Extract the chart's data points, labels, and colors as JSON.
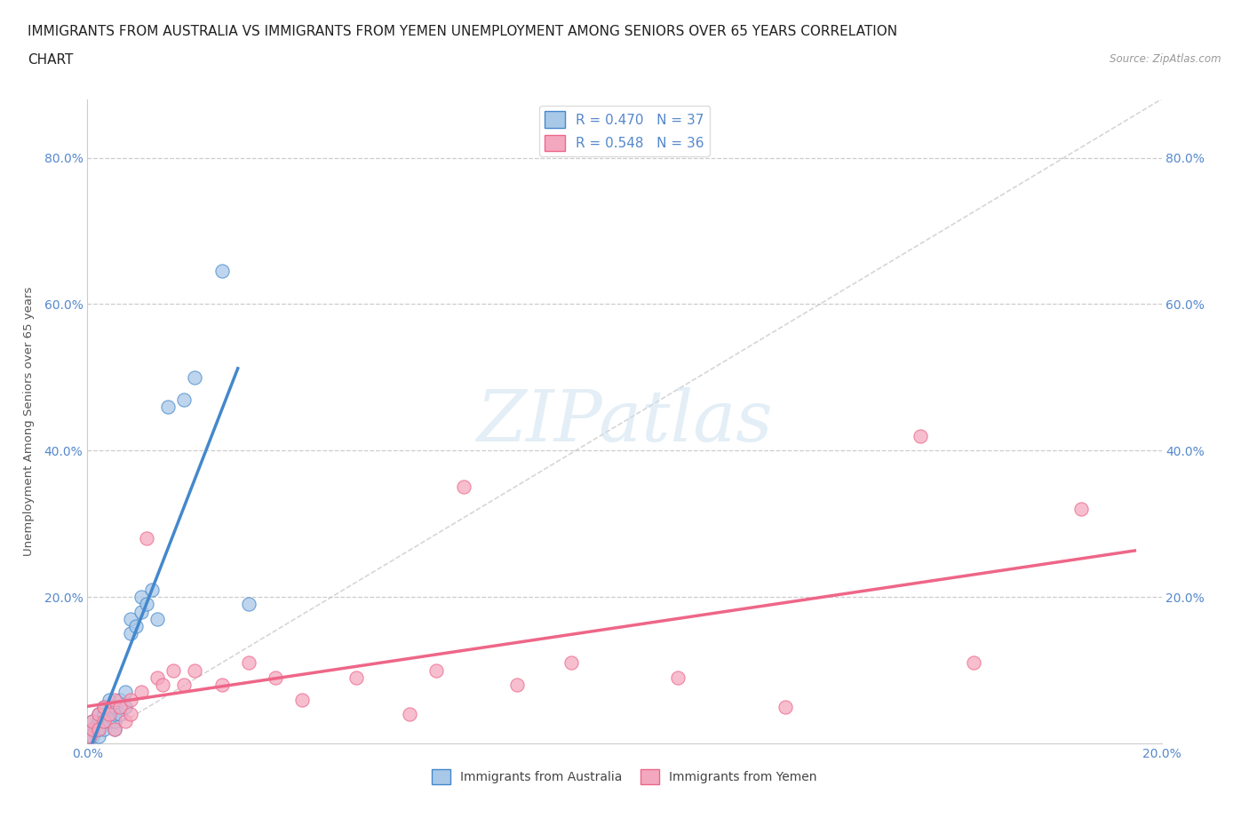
{
  "title_line1": "IMMIGRANTS FROM AUSTRALIA VS IMMIGRANTS FROM YEMEN UNEMPLOYMENT AMONG SENIORS OVER 65 YEARS CORRELATION",
  "title_line2": "CHART",
  "source": "Source: ZipAtlas.com",
  "ylabel": "Unemployment Among Seniors over 65 years",
  "xlim": [
    0.0,
    0.2
  ],
  "ylim": [
    0.0,
    0.88
  ],
  "yticks": [
    0.0,
    0.2,
    0.4,
    0.6,
    0.8
  ],
  "ytick_labels_left": [
    "",
    "20.0%",
    "40.0%",
    "60.0%",
    "80.0%"
  ],
  "ytick_labels_right": [
    "",
    "20.0%",
    "40.0%",
    "60.0%",
    "80.0%"
  ],
  "xticks": [
    0.0,
    0.05,
    0.1,
    0.15,
    0.2
  ],
  "xtick_labels": [
    "0.0%",
    "",
    "",
    "",
    "20.0%"
  ],
  "R_australia": 0.47,
  "N_australia": 37,
  "R_yemen": 0.548,
  "N_yemen": 36,
  "color_australia": "#a8c8e8",
  "color_yemen": "#f4a8c0",
  "line_color_australia": "#4488cc",
  "line_color_yemen": "#ee6688",
  "diagonal_color": "#c8c8c8",
  "watermark_color": "#cce0f0",
  "tick_color": "#5588cc",
  "title_fontsize": 11,
  "axis_label_fontsize": 9.5,
  "tick_fontsize": 10,
  "legend_fontsize": 11,
  "aus_x": [
    0.0005,
    0.001,
    0.001,
    0.001,
    0.0015,
    0.002,
    0.002,
    0.002,
    0.002,
    0.003,
    0.003,
    0.003,
    0.003,
    0.004,
    0.004,
    0.004,
    0.005,
    0.005,
    0.005,
    0.005,
    0.006,
    0.006,
    0.007,
    0.007,
    0.008,
    0.008,
    0.009,
    0.01,
    0.01,
    0.011,
    0.012,
    0.013,
    0.015,
    0.018,
    0.02,
    0.025,
    0.03
  ],
  "aus_y": [
    0.01,
    0.01,
    0.02,
    0.03,
    0.02,
    0.01,
    0.02,
    0.03,
    0.04,
    0.02,
    0.03,
    0.04,
    0.05,
    0.03,
    0.04,
    0.06,
    0.02,
    0.03,
    0.04,
    0.05,
    0.04,
    0.06,
    0.05,
    0.07,
    0.15,
    0.17,
    0.16,
    0.18,
    0.2,
    0.19,
    0.21,
    0.17,
    0.46,
    0.47,
    0.5,
    0.645,
    0.19
  ],
  "yem_x": [
    0.0005,
    0.001,
    0.001,
    0.002,
    0.002,
    0.003,
    0.003,
    0.004,
    0.005,
    0.005,
    0.006,
    0.007,
    0.008,
    0.008,
    0.01,
    0.011,
    0.013,
    0.014,
    0.016,
    0.018,
    0.02,
    0.025,
    0.03,
    0.035,
    0.04,
    0.05,
    0.06,
    0.065,
    0.07,
    0.08,
    0.09,
    0.11,
    0.13,
    0.155,
    0.165,
    0.185
  ],
  "yem_y": [
    0.01,
    0.02,
    0.03,
    0.02,
    0.04,
    0.03,
    0.05,
    0.04,
    0.02,
    0.06,
    0.05,
    0.03,
    0.04,
    0.06,
    0.07,
    0.28,
    0.09,
    0.08,
    0.1,
    0.08,
    0.1,
    0.08,
    0.11,
    0.09,
    0.06,
    0.09,
    0.04,
    0.1,
    0.35,
    0.08,
    0.11,
    0.09,
    0.05,
    0.42,
    0.11,
    0.32
  ],
  "aus_line_x": [
    0.0,
    0.028
  ],
  "yem_line_x": [
    0.0,
    0.195
  ]
}
